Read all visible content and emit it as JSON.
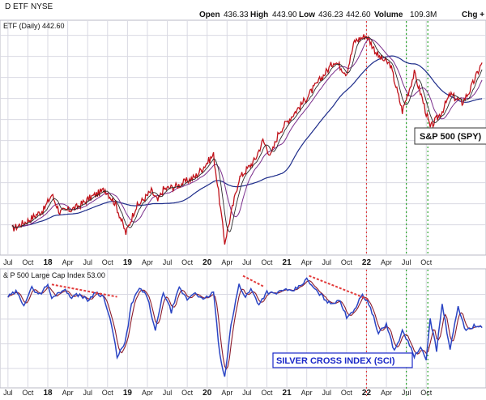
{
  "header": {
    "symbol_text": "D ETF",
    "exchange": "NYSE",
    "open_label": "Open",
    "open_value": "436.33",
    "high_label": "High",
    "high_value": "443.90",
    "low_label": "Low",
    "low_value": "436.23",
    "close_value": "442.60",
    "volume_label": "Volume",
    "volume_value": "109.3M",
    "change_text": "Chg +"
  },
  "top_panel": {
    "legend_text": "ETF (Daily) 442.60",
    "annotation_label": "S&P 500 (SPY)"
  },
  "bottom_panel": {
    "legend_text": "& P 500 Large Cap Index 53.00",
    "annotation_label": "SILVER CROSS INDEX (SCI)"
  },
  "colors": {
    "price": "#c0121a",
    "ma_short": "#2a2a2a",
    "ma_mid": "#7a2e8c",
    "ma_long": "#1d2c8a",
    "sci": "#2b45c4",
    "sci_signal": "#8b1a2a",
    "red_marker": "#e23a3a",
    "green_marker": "#2aa52a",
    "grid": "#d9d9e3",
    "annotation_blue": "#1a28c8"
  },
  "chart_data": [
    {
      "type": "line",
      "title": "S&P 500 (SPY)",
      "series": [
        {
          "name": "S&P 500 (SPY)",
          "x": [
            2017.55,
            2017.75,
            2017.95,
            2018.05,
            2018.15,
            2018.35,
            2018.55,
            2018.72,
            2018.85,
            2018.98,
            2019.1,
            2019.3,
            2019.38,
            2019.45,
            2019.62,
            2019.85,
            2020.08,
            2020.13,
            2020.22,
            2020.4,
            2020.6,
            2020.7,
            2020.8,
            2020.9,
            2021.0,
            2021.2,
            2021.4,
            2021.6,
            2021.75,
            2021.85,
            2022.0,
            2022.15,
            2022.3,
            2022.45,
            2022.6,
            2022.7,
            2022.8,
            2022.95,
            2023.05,
            2023.2,
            2023.3,
            2023.45
          ],
          "y": [
            245,
            255,
            268,
            286,
            265,
            270,
            283,
            292,
            275,
            240,
            270,
            290,
            278,
            292,
            296,
            307,
            333,
            298,
            229,
            305,
            327,
            350,
            332,
            360,
            372,
            395,
            420,
            445,
            430,
            468,
            475,
            450,
            440,
            385,
            430,
            400,
            365,
            385,
            405,
            395,
            410,
            442.6
          ]
        }
      ],
      "xlabels": [
        "Jul",
        "Oct",
        "18",
        "Apr",
        "Jul",
        "Oct",
        "19",
        "Apr",
        "Jul",
        "Oct",
        "20",
        "Apr",
        "Jul",
        "Oct",
        "21",
        "Apr",
        "Jul",
        "Oct",
        "22",
        "Apr",
        "Jul",
        "Oct"
      ],
      "xlabel_positions": [
        2017.5,
        2017.75,
        2018.0,
        2018.25,
        2018.5,
        2018.75,
        2019.0,
        2019.25,
        2019.5,
        2019.75,
        2020.0,
        2020.25,
        2020.5,
        2020.75,
        2021.0,
        2021.25,
        2021.5,
        2021.75,
        2022.0,
        2022.25,
        2022.5,
        2022.75
      ],
      "markers": [
        {
          "x": 2022.0,
          "color": "red"
        },
        {
          "x": 2022.5,
          "color": "green"
        },
        {
          "x": 2022.77,
          "color": "green"
        }
      ]
    },
    {
      "type": "line",
      "title": "SILVER CROSS INDEX (SCI)",
      "series": [
        {
          "name": "SILVER CROSS INDEX (SCI)",
          "x": [
            2017.5,
            2017.6,
            2017.7,
            2017.8,
            2017.9,
            2018.0,
            2018.05,
            2018.1,
            2018.2,
            2018.3,
            2018.4,
            2018.5,
            2018.6,
            2018.7,
            2018.8,
            2018.87,
            2018.97,
            2019.05,
            2019.15,
            2019.25,
            2019.35,
            2019.45,
            2019.55,
            2019.65,
            2019.75,
            2019.85,
            2019.95,
            2020.08,
            2020.16,
            2020.22,
            2020.3,
            2020.4,
            2020.48,
            2020.55,
            2020.65,
            2020.75,
            2020.85,
            2020.95,
            2021.05,
            2021.15,
            2021.25,
            2021.35,
            2021.45,
            2021.55,
            2021.65,
            2021.75,
            2021.85,
            2021.95,
            2022.05,
            2022.15,
            2022.25,
            2022.35,
            2022.45,
            2022.52,
            2022.6,
            2022.68,
            2022.75,
            2022.8,
            2022.88,
            2022.95,
            2023.05,
            2023.15,
            2023.25,
            2023.35,
            2023.45
          ],
          "y": [
            78,
            82,
            72,
            85,
            80,
            88,
            76,
            80,
            84,
            78,
            80,
            75,
            82,
            78,
            55,
            30,
            40,
            72,
            85,
            78,
            50,
            82,
            66,
            85,
            76,
            82,
            75,
            82,
            30,
            12,
            55,
            88,
            78,
            84,
            72,
            82,
            80,
            84,
            82,
            86,
            92,
            84,
            78,
            72,
            76,
            62,
            68,
            80,
            70,
            48,
            56,
            34,
            50,
            42,
            30,
            36,
            28,
            60,
            35,
            72,
            35,
            70,
            50,
            55,
            53
          ]
        }
      ],
      "xlabels": [
        "Jul",
        "Oct",
        "18",
        "Apr",
        "Jul",
        "Oct",
        "19",
        "Apr",
        "Jul",
        "Oct",
        "20",
        "Apr",
        "Jul",
        "Oct",
        "21",
        "Apr",
        "Jul",
        "Oct",
        "22",
        "Apr",
        "Jul",
        "Oct"
      ],
      "xlabel_positions": [
        2017.5,
        2017.75,
        2018.0,
        2018.25,
        2018.5,
        2018.75,
        2019.0,
        2019.25,
        2019.5,
        2019.75,
        2020.0,
        2020.25,
        2020.5,
        2020.75,
        2021.0,
        2021.25,
        2021.5,
        2021.75,
        2022.0,
        2022.25,
        2022.5,
        2022.75
      ],
      "divergence_lines": [
        {
          "x1": 2018.05,
          "y1": 88,
          "x2": 2018.87,
          "y2": 78
        },
        {
          "x1": 2020.45,
          "y1": 95,
          "x2": 2020.72,
          "y2": 86
        },
        {
          "x1": 2021.28,
          "y1": 95,
          "x2": 2022.02,
          "y2": 76
        }
      ],
      "markers": [
        {
          "x": 2022.0,
          "color": "red"
        },
        {
          "x": 2022.5,
          "color": "green"
        },
        {
          "x": 2022.77,
          "color": "green"
        }
      ]
    }
  ]
}
